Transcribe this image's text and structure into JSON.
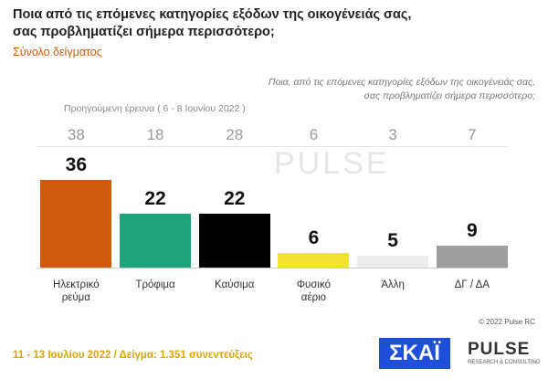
{
  "header": {
    "title_lines": [
      "Ποια από τις επόμενες κατηγορίες εξόδων της οικογένειάς σας,",
      "σας προβληματίζει σήμερα περισσότερο;"
    ],
    "subtitle": "Σύνολο δείγματος"
  },
  "question_lines": [
    "Ποια, από τις επόμενες κατηγορίες εξόδων της οικογένειάς σας,",
    "σας προβληματίζει σήμερα περισσότερο;"
  ],
  "previous_label": "Προηγούμενη έρευνα ( 6 - 8 Ιουνίου 2022 )",
  "chart_data": {
    "type": "bar",
    "categories": [
      "Ηλεκτρικό ρεύμα",
      "Τρόφιμα",
      "Καύσιμα",
      "Φυσικό αέριο",
      "Άλλη",
      "ΔΓ / ΔΑ"
    ],
    "values": [
      36,
      22,
      22,
      6,
      5,
      9
    ],
    "colors": [
      "#d25a0c",
      "#1fa37c",
      "#000000",
      "#f2e234",
      "#ececec",
      "#9e9e9e"
    ],
    "previous_values": [
      38,
      18,
      28,
      6,
      3,
      7
    ]
  },
  "copyright": "© 2022 Pulse RC",
  "footer": "11 - 13 Ιουλίου 2022 / Δείγμα: 1.351 συνεντεύξεις",
  "logos": {
    "skai": "ΣΚΑΪ",
    "pulse": "PULSE",
    "pulse_sub": "RESEARCH & CONSULTING"
  }
}
